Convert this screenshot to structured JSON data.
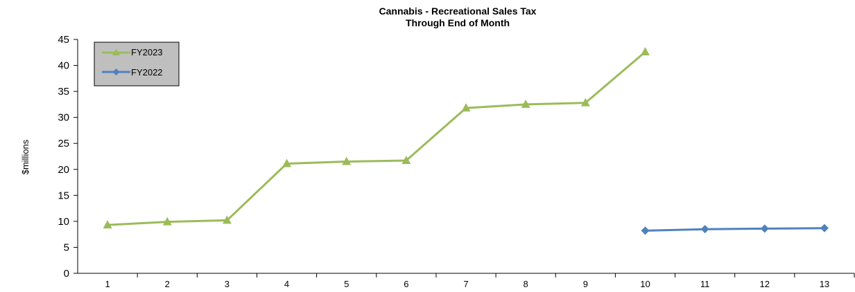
{
  "chart_data": {
    "type": "line",
    "title": [
      "Cannabis - Recreational Sales Tax",
      "Through End of Month"
    ],
    "xlabel": "",
    "ylabel": "$millions",
    "categories": [
      "1",
      "2",
      "3",
      "4",
      "5",
      "6",
      "7",
      "8",
      "9",
      "10",
      "11",
      "12",
      "13"
    ],
    "yticks": [
      0,
      5,
      10,
      15,
      20,
      25,
      30,
      35,
      40,
      45
    ],
    "ylim": [
      0,
      45
    ],
    "grid": false,
    "legend_position": "top-left",
    "series": [
      {
        "name": "FY2023",
        "color": "#9BBB59",
        "marker": "triangle",
        "values": [
          9.3,
          9.9,
          10.2,
          21.1,
          21.5,
          21.7,
          31.8,
          32.5,
          32.8,
          42.6,
          null,
          null,
          null
        ]
      },
      {
        "name": "FY2022",
        "color": "#4F81BD",
        "marker": "diamond",
        "values": [
          null,
          null,
          null,
          null,
          null,
          null,
          null,
          null,
          null,
          8.2,
          8.5,
          8.6,
          8.7
        ]
      }
    ]
  }
}
